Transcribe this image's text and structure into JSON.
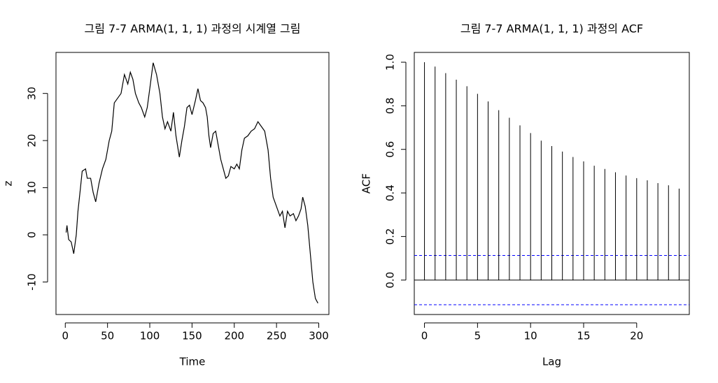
{
  "chart_data": [
    {
      "type": "line",
      "title": "그림 7-7 ARMA(1, 1, 1) 과정의 시계열 그림",
      "xlabel": "Time",
      "ylabel": "z",
      "x": [
        1,
        2,
        4,
        7,
        10,
        13,
        15,
        18,
        20,
        24,
        26,
        30,
        33,
        36,
        40,
        44,
        48,
        52,
        55,
        58,
        62,
        66,
        70,
        74,
        77,
        80,
        83,
        87,
        90,
        94,
        97,
        100,
        104,
        108,
        112,
        115,
        118,
        121,
        125,
        128,
        131,
        135,
        138,
        141,
        144,
        147,
        150,
        154,
        157,
        160,
        163,
        166,
        168,
        170,
        172,
        175,
        178,
        181,
        184,
        187,
        190,
        193,
        196,
        200,
        203,
        206,
        209,
        212,
        216,
        220,
        224,
        228,
        232,
        236,
        240,
        243,
        246,
        250,
        254,
        257,
        260,
        263,
        266,
        270,
        273,
        276,
        279,
        281,
        284,
        287,
        290,
        293,
        296,
        299
      ],
      "values": [
        0.5,
        2,
        -1,
        -1.5,
        -4,
        0,
        5,
        10,
        13.5,
        14,
        12,
        12,
        9,
        7,
        11,
        14,
        16,
        20,
        22,
        28,
        29,
        30,
        34,
        32,
        34.5,
        33,
        30,
        28,
        27,
        25,
        27,
        31,
        36.5,
        34,
        30,
        25,
        22.5,
        24,
        22,
        26,
        21,
        16.5,
        20,
        23,
        27,
        27.5,
        25.5,
        28.5,
        31,
        28.5,
        28,
        27,
        25,
        21,
        18.5,
        21.5,
        22,
        19,
        16,
        14,
        12,
        12.5,
        14.5,
        14,
        15,
        14,
        18,
        20.5,
        21,
        22,
        22.5,
        24,
        23,
        22,
        18,
        12,
        8,
        6,
        4,
        5,
        1.5,
        5,
        4,
        4.5,
        3,
        4,
        5.5,
        8,
        6,
        2,
        -4,
        -10,
        -13.5,
        -14.5
      ],
      "color": "#000000",
      "xlim": [
        -11,
        312
      ],
      "ylim": [
        -16.9,
        38.7
      ],
      "xticks": [
        0,
        50,
        100,
        150,
        200,
        250,
        300
      ],
      "yticks": [
        -10,
        0,
        10,
        20,
        30
      ]
    },
    {
      "type": "acf",
      "title": "그림 7-7 ARMA(1, 1, 1) 과정의 ACF",
      "xlabel": "Lag",
      "ylabel": "ACF",
      "x": [
        0,
        1,
        2,
        3,
        4,
        5,
        6,
        7,
        8,
        9,
        10,
        11,
        12,
        13,
        14,
        15,
        16,
        17,
        18,
        19,
        20,
        21,
        22,
        23,
        24
      ],
      "values": [
        1.0,
        0.98,
        0.95,
        0.92,
        0.89,
        0.855,
        0.82,
        0.78,
        0.745,
        0.71,
        0.675,
        0.64,
        0.615,
        0.59,
        0.565,
        0.545,
        0.525,
        0.51,
        0.495,
        0.48,
        0.468,
        0.458,
        0.445,
        0.435,
        0.42
      ],
      "color": "#000000",
      "hlines": [
        0.113,
        -0.113
      ],
      "hline_color": "#0000ff",
      "xlim": [
        -0.96,
        24.96
      ],
      "ylim": [
        -0.158,
        1.045
      ],
      "xticks": [
        0,
        5,
        10,
        15,
        20
      ],
      "yticks": [
        {
          "value": 0,
          "label": "0.0"
        },
        0.2,
        0.4,
        0.6,
        0.8,
        {
          "value": 1,
          "label": "1.0"
        }
      ]
    }
  ]
}
